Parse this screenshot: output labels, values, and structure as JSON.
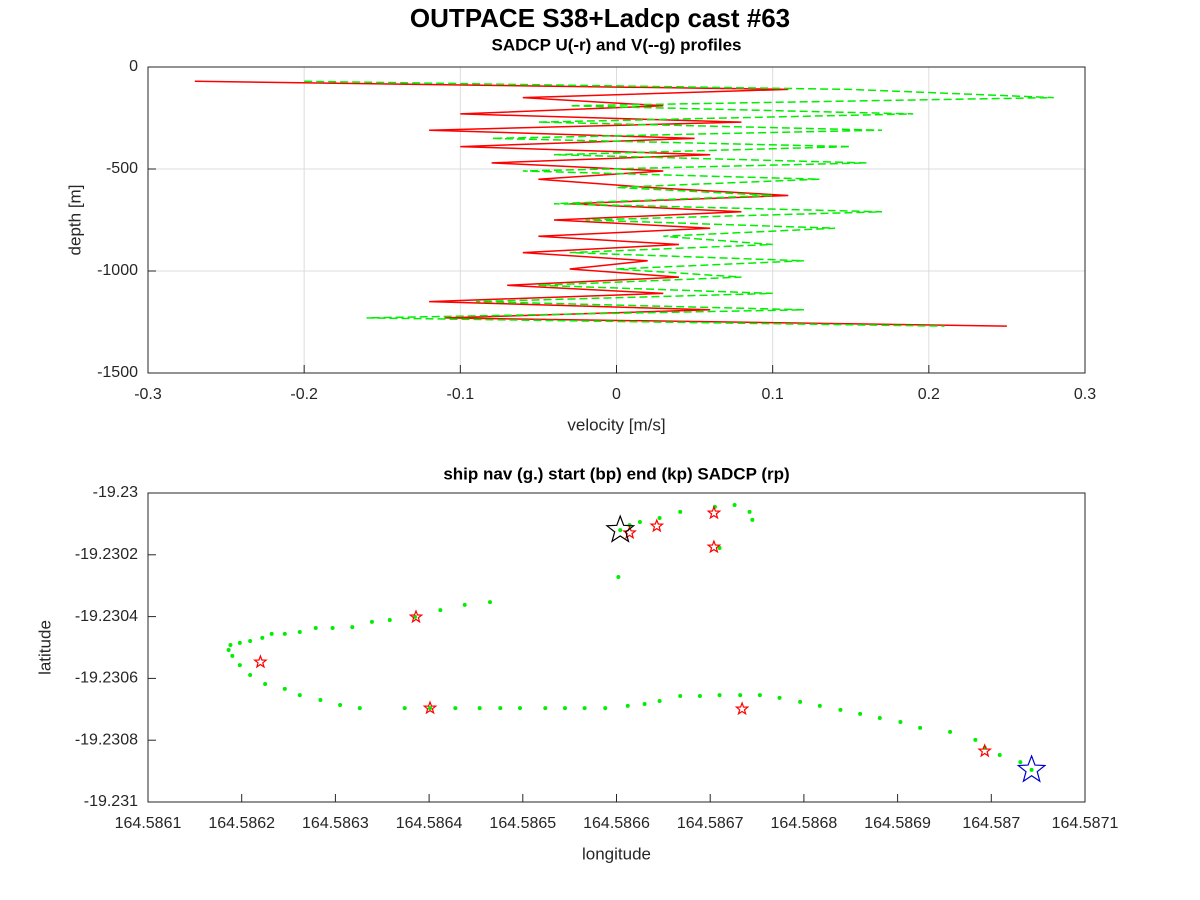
{
  "title": "OUTPACE S38+Ladcp cast #63",
  "chart_data": [
    {
      "type": "line",
      "title": "SADCP U(-r) and V(--g) profiles",
      "xlabel": "velocity [m/s]",
      "ylabel": "depth [m]",
      "xlim": [
        -0.3,
        0.3
      ],
      "xticks": [
        -0.3,
        -0.2,
        -0.1,
        0,
        0.1,
        0.2,
        0.3
      ],
      "ylim": [
        -1500,
        0
      ],
      "yticks": [
        -1500,
        -1000,
        -500,
        0
      ],
      "grid": true,
      "depth": [
        -70,
        -110,
        -150,
        -190,
        -230,
        -270,
        -310,
        -350,
        -390,
        -430,
        -470,
        -510,
        -550,
        -590,
        -630,
        -670,
        -710,
        -750,
        -790,
        -830,
        -870,
        -910,
        -950,
        -990,
        -1030,
        -1070,
        -1110,
        -1150,
        -1190,
        -1230,
        -1270
      ],
      "series": [
        {
          "color": "#ff0000",
          "dash": false,
          "values": [
            -0.27,
            0.11,
            -0.06,
            0.03,
            -0.1,
            0.08,
            -0.12,
            0.05,
            -0.1,
            0.06,
            -0.08,
            0.03,
            -0.05,
            0.02,
            0.11,
            -0.03,
            0.08,
            -0.04,
            0.06,
            -0.05,
            0.04,
            -0.06,
            0.02,
            -0.03,
            0.04,
            -0.07,
            0.03,
            -0.12,
            0.06,
            -0.11,
            0.25
          ]
        },
        {
          "color": "#00ee00",
          "dash": true,
          "values": [
            -0.2,
            0.15,
            0.28,
            -0.03,
            0.19,
            -0.05,
            0.17,
            -0.08,
            0.15,
            -0.04,
            0.16,
            -0.06,
            0.13,
            0.0,
            0.1,
            -0.04,
            0.17,
            -0.02,
            0.14,
            0.03,
            0.1,
            -0.03,
            0.12,
            0.0,
            0.08,
            -0.05,
            0.1,
            -0.09,
            0.12,
            -0.16,
            0.21
          ]
        }
      ]
    },
    {
      "type": "scatter",
      "title": "ship nav (g.) start (bp) end (kp) SADCP (rp)",
      "xlabel": "longitude",
      "ylabel": "latitude",
      "xlim": [
        164.5861,
        164.5871
      ],
      "xticks": [
        164.5861,
        164.5862,
        164.5863,
        164.5864,
        164.5865,
        164.5866,
        164.5867,
        164.5868,
        164.5869,
        164.587,
        164.5871
      ],
      "ylim": [
        -19.231,
        -19.23
      ],
      "yticks": [
        -19.231,
        -19.2308,
        -19.2306,
        -19.2304,
        -19.2302,
        -19.23
      ],
      "grid": false,
      "series": [
        {
          "color": "#00ee00",
          "marker": "dot",
          "x": [
            164.586465,
            164.586438,
            164.586412,
            164.586385,
            164.586358,
            164.586339,
            164.586318,
            164.586297,
            164.586279,
            164.586262,
            164.586246,
            164.586232,
            164.586222,
            164.586209,
            164.586198,
            164.586188,
            164.586186,
            164.58619,
            164.586198,
            164.586209,
            164.586225,
            164.586246,
            164.586262,
            164.586284,
            164.586305,
            164.586326,
            164.586374,
            164.586401,
            164.586428,
            164.586454,
            164.586476,
            164.586497,
            164.586524,
            164.586545,
            164.586566,
            164.586588,
            164.586612,
            164.58663,
            164.586646,
            164.586668,
            164.586689,
            164.58671,
            164.586732,
            164.586753,
            164.586774,
            164.586796,
            164.586817,
            164.586839,
            164.58686,
            164.586881,
            164.586903,
            164.586924,
            164.586956,
            164.586983,
            164.586993,
            164.587009,
            164.587031,
            164.587043,
            164.586602,
            164.586604,
            164.586625,
            164.586646,
            164.586668,
            164.586705,
            164.586726,
            164.586742,
            164.586745,
            164.58671,
            164.586614
          ],
          "values": [
            -19.230353,
            -19.230362,
            -19.230379,
            -19.230401,
            -19.230411,
            -19.230417,
            -19.230434,
            -19.230437,
            -19.230437,
            -19.23045,
            -19.230456,
            -19.230456,
            -19.230469,
            -19.230479,
            -19.230485,
            -19.230492,
            -19.230508,
            -19.230527,
            -19.230557,
            -19.230589,
            -19.230618,
            -19.230634,
            -19.230654,
            -19.23067,
            -19.230686,
            -19.230696,
            -19.230696,
            -19.230696,
            -19.230696,
            -19.230696,
            -19.230696,
            -19.230696,
            -19.230696,
            -19.230696,
            -19.230696,
            -19.230696,
            -19.230689,
            -19.230683,
            -19.230673,
            -19.230657,
            -19.230657,
            -19.230654,
            -19.230654,
            -19.230654,
            -19.230663,
            -19.230676,
            -19.230689,
            -19.230702,
            -19.230715,
            -19.230728,
            -19.230741,
            -19.23076,
            -19.230773,
            -19.230799,
            -19.230825,
            -19.230848,
            -19.230871,
            -19.230896,
            -19.230272,
            -19.23012,
            -19.230094,
            -19.230081,
            -19.230061,
            -19.230045,
            -19.230039,
            -19.230061,
            -19.230087,
            -19.230178,
            -19.230104
          ]
        },
        {
          "color": "#ff0000",
          "marker": "star",
          "x": [
            164.586614,
            164.586643,
            164.586704,
            164.586704,
            164.586386,
            164.58622,
            164.586401,
            164.586734,
            164.586993
          ],
          "values": [
            -19.230129,
            -19.230107,
            -19.230065,
            -19.230175,
            -19.230401,
            -19.230547,
            -19.230696,
            -19.230699,
            -19.230835
          ]
        },
        {
          "color": "#0000cc",
          "marker": "bigstar",
          "x": [
            164.587043
          ],
          "values": [
            -19.230896
          ]
        },
        {
          "color": "#000000",
          "marker": "bigstar",
          "x": [
            164.586604
          ],
          "values": [
            -19.23012
          ]
        }
      ]
    }
  ]
}
